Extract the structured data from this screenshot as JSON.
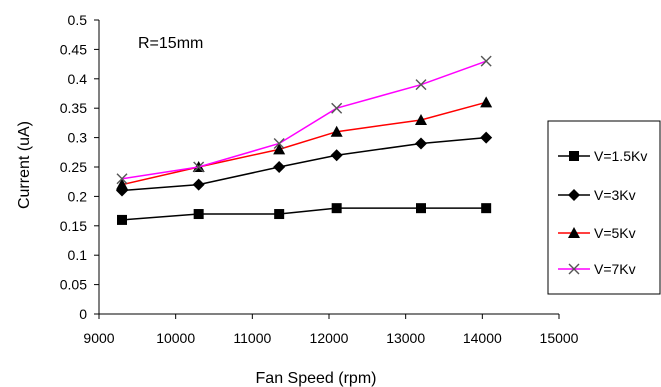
{
  "chart_data": {
    "type": "line",
    "xlabel": "Fan Speed (rpm)",
    "ylabel": "Current (uA)",
    "annotation": "R=15mm",
    "xlim": [
      9000,
      15000
    ],
    "ylim": [
      0,
      0.5
    ],
    "xticks": [
      "9000",
      "10000",
      "11000",
      "12000",
      "13000",
      "14000",
      "15000"
    ],
    "yticks": [
      "0",
      "0.05",
      "0.1",
      "0.15",
      "0.2",
      "0.25",
      "0.3",
      "0.35",
      "0.4",
      "0.45",
      "0.5"
    ],
    "grid": false,
    "legend_position": "right",
    "x": [
      9300,
      10300,
      11350,
      12100,
      13200,
      14050
    ],
    "series": [
      {
        "name": "V=1.5Kv",
        "marker": "square",
        "color": "#000000",
        "values": [
          0.16,
          0.17,
          0.17,
          0.18,
          0.18,
          0.18
        ]
      },
      {
        "name": "V=3Kv",
        "marker": "diamond",
        "color": "#000000",
        "values": [
          0.21,
          0.22,
          0.25,
          0.27,
          0.29,
          0.3
        ]
      },
      {
        "name": "V=5Kv",
        "marker": "triangle",
        "color": "#ff0000",
        "values": [
          0.22,
          0.25,
          0.28,
          0.31,
          0.33,
          0.36
        ]
      },
      {
        "name": "V=7Kv",
        "marker": "x",
        "color": "#ff00ff",
        "values": [
          0.23,
          0.25,
          0.29,
          0.35,
          0.39,
          0.43
        ]
      }
    ]
  }
}
